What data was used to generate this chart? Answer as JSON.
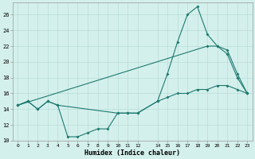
{
  "xlabel": "Humidex (Indice chaleur)",
  "background_color": "#d4f0ec",
  "grid_color": "#b8ddd8",
  "line_color": "#1e7a70",
  "xlim": [
    -0.5,
    23.5
  ],
  "ylim": [
    10,
    27.5
  ],
  "xticks": [
    0,
    1,
    2,
    3,
    4,
    5,
    6,
    7,
    8,
    9,
    10,
    11,
    12,
    14,
    15,
    16,
    17,
    18,
    19,
    20,
    21,
    22,
    23
  ],
  "yticks": [
    10,
    12,
    14,
    16,
    18,
    20,
    22,
    24,
    26
  ],
  "series1_x": [
    0,
    1,
    2,
    3,
    4,
    10,
    11,
    12,
    14,
    15,
    16,
    17,
    18,
    19,
    20,
    21,
    22,
    23
  ],
  "series1_y": [
    14.5,
    15.0,
    14.0,
    15.0,
    14.5,
    13.5,
    13.5,
    13.5,
    15.0,
    18.5,
    22.5,
    26.0,
    27.0,
    23.5,
    22.0,
    21.0,
    18.0,
    16.0
  ],
  "series2_x": [
    0,
    1,
    2,
    3,
    4,
    5,
    6,
    7,
    8,
    9,
    10,
    11,
    12,
    14,
    15,
    16,
    17,
    18,
    19,
    20,
    21,
    22,
    23
  ],
  "series2_y": [
    14.5,
    15.0,
    14.0,
    15.0,
    14.5,
    10.5,
    10.5,
    11.0,
    11.5,
    11.5,
    13.5,
    13.5,
    13.5,
    15.0,
    15.5,
    16.0,
    16.0,
    16.5,
    16.5,
    17.0,
    17.0,
    16.5,
    16.0
  ],
  "series3_x": [
    0,
    19,
    20,
    21,
    22,
    23
  ],
  "series3_y": [
    14.5,
    22.0,
    22.0,
    21.5,
    18.5,
    16.0
  ]
}
